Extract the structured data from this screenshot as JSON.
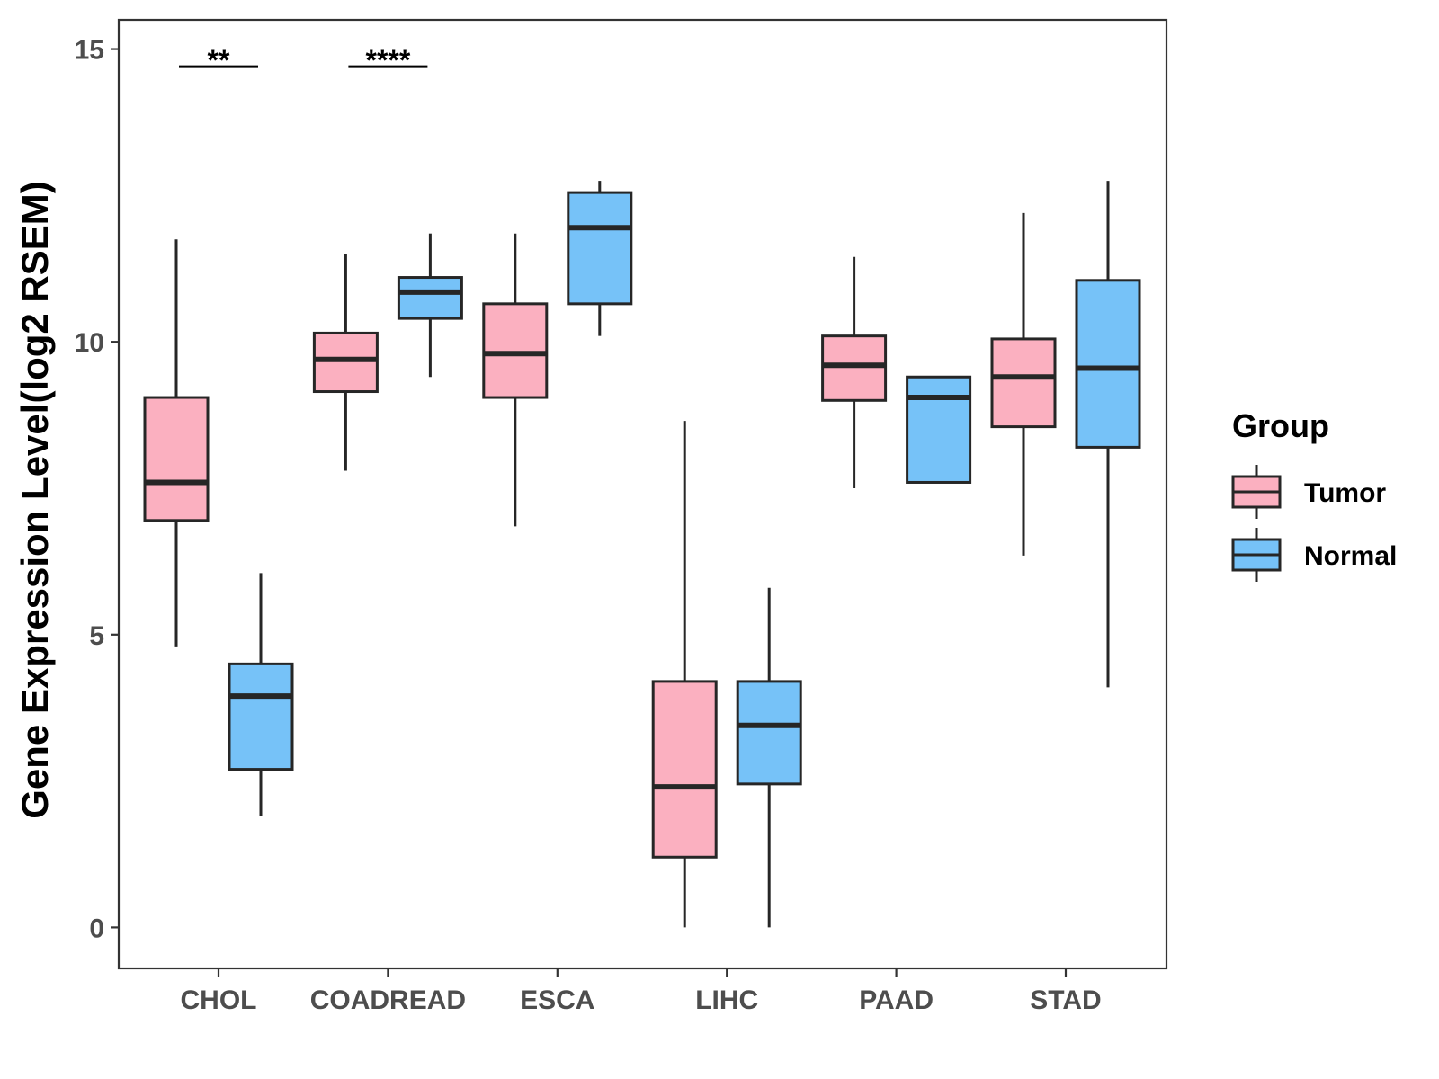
{
  "chart_data": {
    "type": "boxplot",
    "title": "",
    "xlabel": "",
    "ylabel": "Gene Expression Level(log2 RSEM)",
    "ylim": [
      -0.7,
      15.5
    ],
    "yticks": [
      0,
      5,
      10,
      15
    ],
    "ytick_labels": [
      "0",
      "5",
      "10",
      "15"
    ],
    "categories": [
      "CHOL",
      "COADREAD",
      "ESCA",
      "LIHC",
      "PAAD",
      "STAD"
    ],
    "legend": {
      "title": "Group",
      "position": "right",
      "items": [
        {
          "label": "Tumor",
          "color": "#FBB0C0"
        },
        {
          "label": "Normal",
          "color": "#76C2F8"
        }
      ]
    },
    "series": [
      {
        "name": "Tumor",
        "color": "#FBB0C0",
        "boxes": [
          {
            "category": "CHOL",
            "whisker_low": 4.8,
            "q1": 6.95,
            "median": 7.6,
            "q3": 9.05,
            "whisker_high": 11.75
          },
          {
            "category": "COADREAD",
            "whisker_low": 7.8,
            "q1": 9.15,
            "median": 9.7,
            "q3": 10.15,
            "whisker_high": 11.5
          },
          {
            "category": "ESCA",
            "whisker_low": 6.85,
            "q1": 9.05,
            "median": 9.8,
            "q3": 10.65,
            "whisker_high": 11.85
          },
          {
            "category": "LIHC",
            "whisker_low": 0.0,
            "q1": 1.2,
            "median": 2.4,
            "q3": 4.2,
            "whisker_high": 8.65
          },
          {
            "category": "PAAD",
            "whisker_low": 7.5,
            "q1": 9.0,
            "median": 9.6,
            "q3": 10.1,
            "whisker_high": 11.45
          },
          {
            "category": "STAD",
            "whisker_low": 6.35,
            "q1": 8.55,
            "median": 9.4,
            "q3": 10.05,
            "whisker_high": 12.2
          }
        ]
      },
      {
        "name": "Normal",
        "color": "#76C2F8",
        "boxes": [
          {
            "category": "CHOL",
            "whisker_low": 1.9,
            "q1": 2.7,
            "median": 3.95,
            "q3": 4.5,
            "whisker_high": 6.05
          },
          {
            "category": "COADREAD",
            "whisker_low": 9.4,
            "q1": 10.4,
            "median": 10.85,
            "q3": 11.1,
            "whisker_high": 11.85
          },
          {
            "category": "ESCA",
            "whisker_low": 10.1,
            "q1": 10.65,
            "median": 11.95,
            "q3": 12.55,
            "whisker_high": 12.75
          },
          {
            "category": "LIHC",
            "whisker_low": 0.0,
            "q1": 2.45,
            "median": 3.45,
            "q3": 4.2,
            "whisker_high": 5.8
          },
          {
            "category": "PAAD",
            "whisker_low": 7.6,
            "q1": 7.6,
            "median": 9.05,
            "q3": 9.4,
            "whisker_high": 9.4
          },
          {
            "category": "STAD",
            "whisker_low": 4.1,
            "q1": 8.2,
            "median": 9.55,
            "q3": 11.05,
            "whisker_high": 12.75
          }
        ]
      }
    ],
    "annotations": [
      {
        "category": "CHOL",
        "label": "**",
        "y": 14.7
      },
      {
        "category": "COADREAD",
        "label": "****",
        "y": 14.7
      }
    ]
  }
}
